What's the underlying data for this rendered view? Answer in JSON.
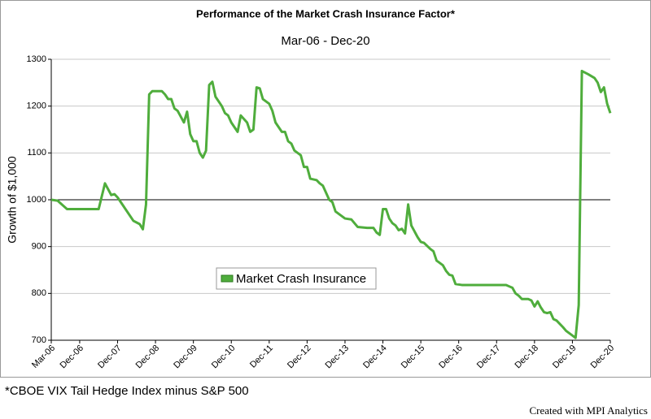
{
  "chart_data": {
    "type": "line",
    "title": "Performance of the Market Crash Insurance Factor*",
    "subtitle": "Mar-06 - Dec-20",
    "y_label": "Growth of $1,000",
    "footnote": "*CBOE VIX Tail Hedge Index minus S&P 500",
    "credit": "Created with MPI Analytics",
    "x": [
      "Mar-06",
      "May-06",
      "Aug-06",
      "Jun-07",
      "Aug-07",
      "Oct-07",
      "Nov-07",
      "Dec-07",
      "Feb-08",
      "May-08",
      "Jul-08",
      "Aug-08",
      "Sep-08",
      "Oct-08",
      "Nov-08",
      "Feb-09",
      "Mar-09",
      "Apr-09",
      "May-09",
      "Jun-09",
      "Jul-09",
      "Sep-09",
      "Oct-09",
      "Nov-09",
      "Dec-09",
      "Jan-10",
      "Feb-10",
      "Mar-10",
      "Apr-10",
      "May-10",
      "Jun-10",
      "Jul-10",
      "Sep-10",
      "Oct-10",
      "Nov-10",
      "Dec-10",
      "Feb-11",
      "Mar-11",
      "May-11",
      "Jun-11",
      "Jul-11",
      "Aug-11",
      "Sep-11",
      "Oct-11",
      "Dec-11",
      "Jan-12",
      "Feb-12",
      "Apr-12",
      "May-12",
      "Jun-12",
      "Jul-12",
      "Aug-12",
      "Oct-12",
      "Nov-12",
      "Dec-12",
      "Jan-13",
      "Mar-13",
      "Apr-13",
      "May-13",
      "Jul-13",
      "Aug-13",
      "Sep-13",
      "Oct-13",
      "Nov-13",
      "Dec-13",
      "Feb-14",
      "Apr-14",
      "Jul-14",
      "Sep-14",
      "Oct-14",
      "Nov-14",
      "Dec-14",
      "Jan-15",
      "Feb-15",
      "Mar-15",
      "Apr-15",
      "May-15",
      "Jun-15",
      "Jul-15",
      "Aug-15",
      "Sep-15",
      "Nov-15",
      "Dec-15",
      "Jan-16",
      "Mar-16",
      "Apr-16",
      "May-16",
      "Jul-16",
      "Aug-16",
      "Sep-16",
      "Oct-16",
      "Nov-16",
      "Jan-17",
      "Mar-18",
      "Apr-18",
      "May-18",
      "Jun-18",
      "Jul-18",
      "Aug-18",
      "Oct-18",
      "Nov-18",
      "Dec-18",
      "Jan-19",
      "Feb-19",
      "Mar-19",
      "Apr-19",
      "May-19",
      "Jun-19",
      "Jul-19",
      "Sep-19",
      "Oct-19",
      "Dec-19",
      "Jan-20",
      "Feb-20",
      "Mar-20",
      "May-20",
      "Jul-20",
      "Aug-20",
      "Sep-20",
      "Oct-20",
      "Nov-20",
      "Dec-20"
    ],
    "series": [
      {
        "name": "Market Crash Insurance",
        "color": "#4fad3c",
        "values": [
          1000,
          998,
          980,
          980,
          1035,
          1010,
          1012,
          1005,
          985,
          955,
          948,
          937,
          990,
          1225,
          1232,
          1232,
          1225,
          1215,
          1215,
          1195,
          1190,
          1165,
          1188,
          1140,
          1125,
          1125,
          1100,
          1090,
          1105,
          1245,
          1252,
          1220,
          1200,
          1185,
          1180,
          1165,
          1145,
          1180,
          1165,
          1145,
          1150,
          1240,
          1238,
          1215,
          1205,
          1190,
          1165,
          1145,
          1145,
          1125,
          1120,
          1105,
          1095,
          1070,
          1070,
          1045,
          1042,
          1035,
          1030,
          1000,
          995,
          975,
          970,
          965,
          960,
          958,
          942,
          940,
          940,
          930,
          925,
          980,
          980,
          960,
          950,
          945,
          935,
          938,
          928,
          990,
          945,
          920,
          910,
          908,
          895,
          890,
          870,
          860,
          848,
          840,
          838,
          820,
          818,
          818,
          815,
          812,
          800,
          795,
          788,
          788,
          785,
          772,
          783,
          770,
          760,
          758,
          760,
          745,
          742,
          728,
          720,
          710,
          705,
          775,
          1275,
          1268,
          1260,
          1250,
          1230,
          1240,
          1205,
          1185
        ]
      }
    ],
    "xticks": [
      "Mar-06",
      "Dec-06",
      "Dec-07",
      "Dec-08",
      "Dec-09",
      "Dec-10",
      "Dec-11",
      "Dec-12",
      "Dec-13",
      "Dec-14",
      "Dec-15",
      "Dec-16",
      "Dec-17",
      "Dec-18",
      "Dec-19",
      "Dec-20"
    ],
    "ylim": [
      700,
      1300
    ],
    "yticks": [
      700,
      800,
      900,
      1000,
      1100,
      1200,
      1300
    ],
    "reference_line": 1000,
    "grid": true,
    "legend": "center"
  }
}
